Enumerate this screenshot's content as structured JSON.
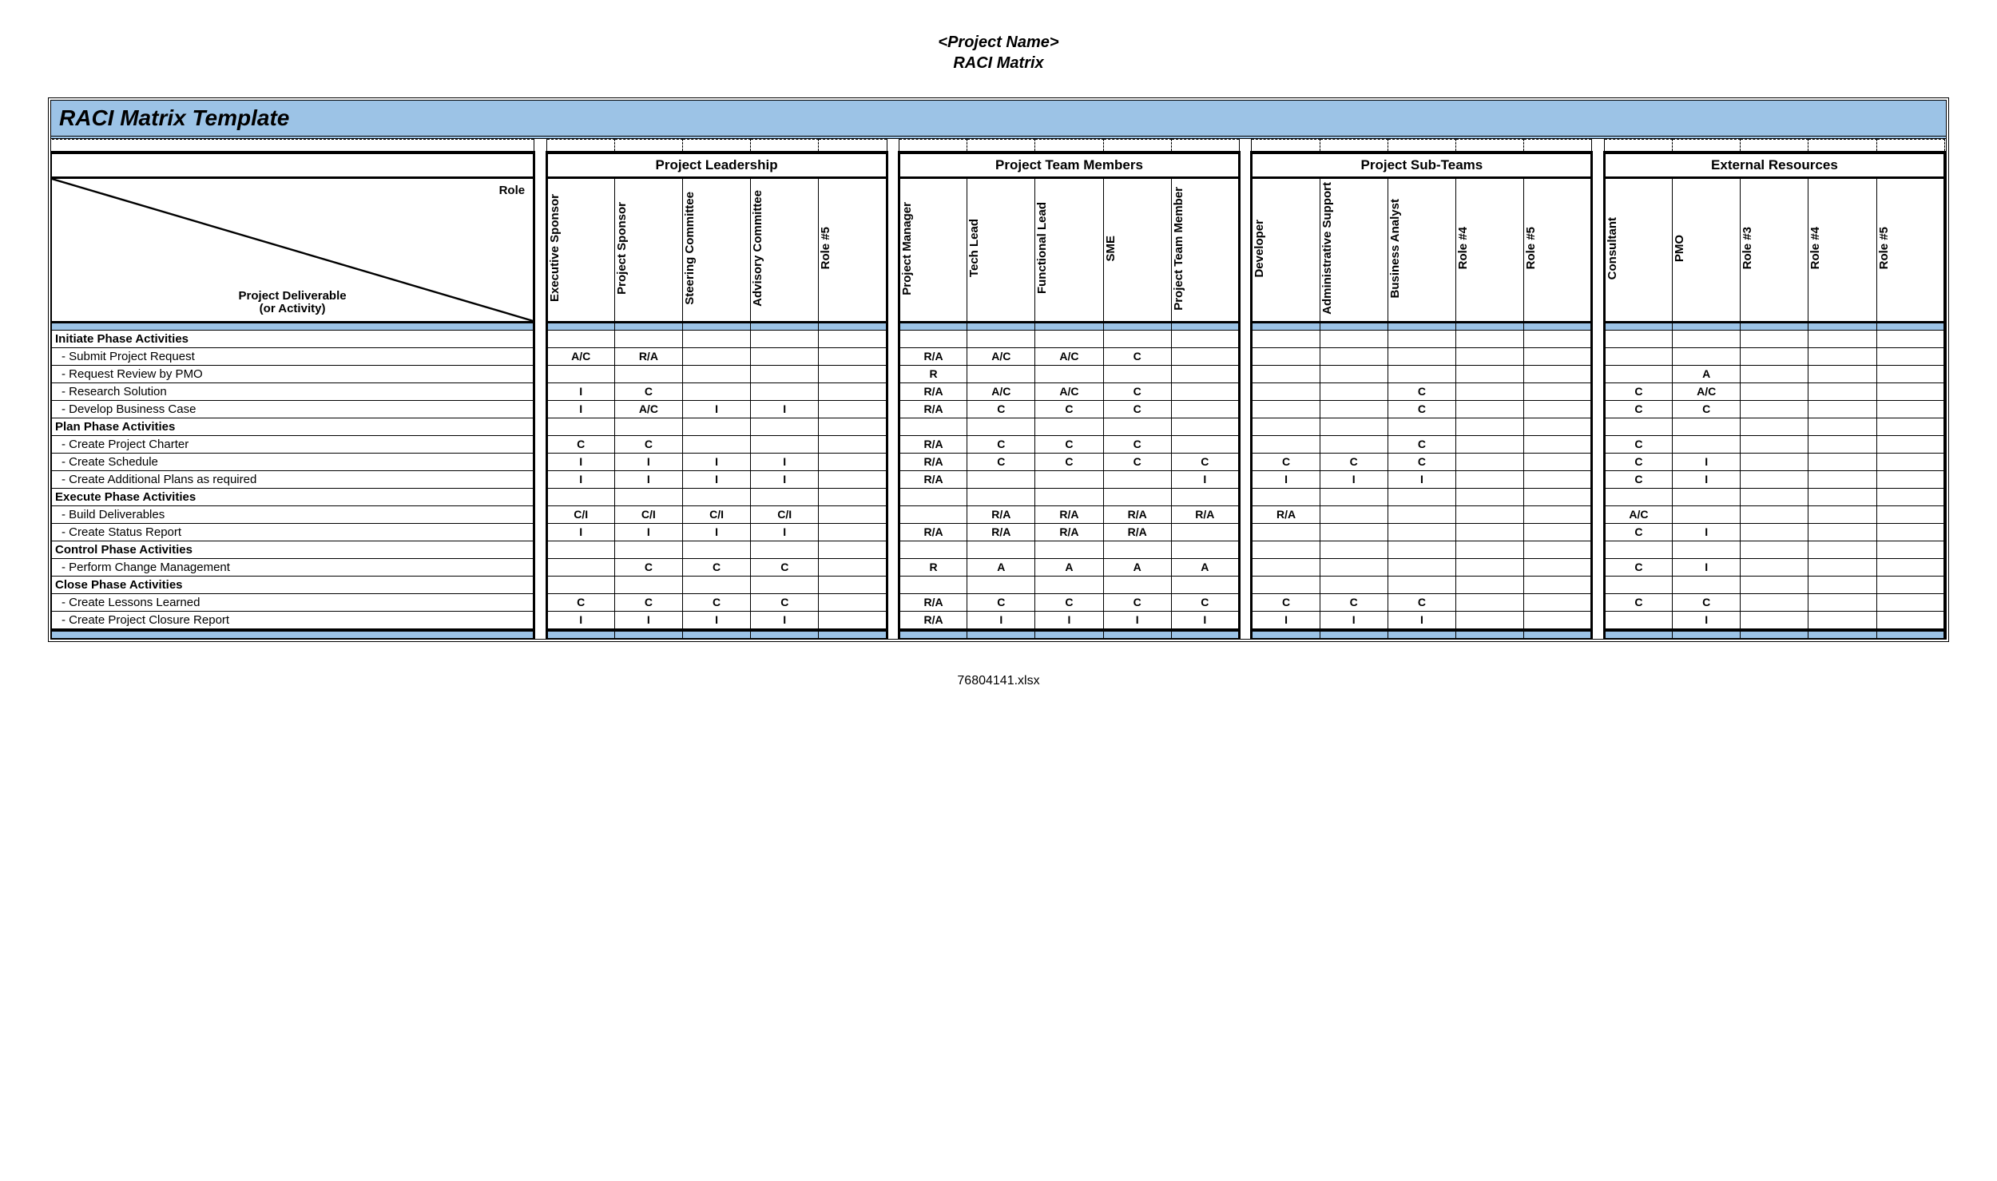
{
  "header_line1": "<Project Name>",
  "header_line2": "RACI Matrix",
  "title": "RACI Matrix Template",
  "diag_top": "Role",
  "diag_bottom_l1": "Project Deliverable",
  "diag_bottom_l2": "(or Activity)",
  "footer": "76804141.xlsx",
  "colors": {
    "band": "#9cc3e6",
    "border": "#000000",
    "bg": "#ffffff"
  },
  "groups": [
    {
      "label": "Project Leadership",
      "roles": [
        "Executive Sponsor",
        "Project Sponsor",
        "Steering Committee",
        "Advisory Committee",
        "Role #5"
      ]
    },
    {
      "label": "Project Team Members",
      "roles": [
        "Project Manager",
        "Tech Lead",
        "Functional Lead",
        "SME",
        "Project Team Member"
      ]
    },
    {
      "label": "Project Sub-Teams",
      "roles": [
        "Developer",
        "Administrative Support",
        "Business Analyst",
        "Role #4",
        "Role #5"
      ]
    },
    {
      "label": "External Resources",
      "roles": [
        "Consultant",
        "PMO",
        "Role #3",
        "Role #4",
        "Role #5"
      ]
    }
  ],
  "rows": [
    {
      "type": "phase",
      "label": "Initiate Phase Activities"
    },
    {
      "type": "act",
      "label": " - Submit Project Request",
      "cells": [
        "A/C",
        "R/A",
        "",
        "",
        "",
        "R/A",
        "A/C",
        "A/C",
        "C",
        "",
        "",
        "",
        "",
        "",
        "",
        "",
        "",
        "",
        "",
        ""
      ]
    },
    {
      "type": "act",
      "label": " - Request Review by PMO",
      "cells": [
        "",
        "",
        "",
        "",
        "",
        "R",
        "",
        "",
        "",
        "",
        "",
        "",
        "",
        "",
        "",
        "",
        "A",
        "",
        "",
        ""
      ]
    },
    {
      "type": "act",
      "label": " - Research Solution",
      "cells": [
        "I",
        "C",
        "",
        "",
        "",
        "R/A",
        "A/C",
        "A/C",
        "C",
        "",
        "",
        "",
        "C",
        "",
        "",
        "C",
        "A/C",
        "",
        "",
        ""
      ]
    },
    {
      "type": "act",
      "label": " - Develop Business Case",
      "cells": [
        "I",
        "A/C",
        "I",
        "I",
        "",
        "R/A",
        "C",
        "C",
        "C",
        "",
        "",
        "",
        "C",
        "",
        "",
        "C",
        "C",
        "",
        "",
        ""
      ]
    },
    {
      "type": "phase",
      "label": "Plan Phase Activities"
    },
    {
      "type": "act",
      "label": " - Create Project Charter",
      "cells": [
        "C",
        "C",
        "",
        "",
        "",
        "R/A",
        "C",
        "C",
        "C",
        "",
        "",
        "",
        "C",
        "",
        "",
        "C",
        "",
        "",
        "",
        ""
      ]
    },
    {
      "type": "act",
      "label": " - Create Schedule",
      "cells": [
        "I",
        "I",
        "I",
        "I",
        "",
        "R/A",
        "C",
        "C",
        "C",
        "C",
        "C",
        "C",
        "C",
        "",
        "",
        "C",
        "I",
        "",
        "",
        ""
      ]
    },
    {
      "type": "act",
      "label": " - Create Additional Plans as required",
      "cells": [
        "I",
        "I",
        "I",
        "I",
        "",
        "R/A",
        "",
        "",
        "",
        "I",
        "I",
        "I",
        "I",
        "",
        "",
        "C",
        "I",
        "",
        "",
        ""
      ]
    },
    {
      "type": "phase",
      "label": "Execute Phase Activities"
    },
    {
      "type": "act",
      "label": " - Build Deliverables",
      "cells": [
        "C/I",
        "C/I",
        "C/I",
        "C/I",
        "",
        "",
        "R/A",
        "R/A",
        "R/A",
        "R/A",
        "R/A",
        "",
        "",
        "",
        "",
        "A/C",
        "",
        "",
        "",
        ""
      ]
    },
    {
      "type": "act",
      "label": " - Create Status Report",
      "cells": [
        "I",
        "I",
        "I",
        "I",
        "",
        "R/A",
        "R/A",
        "R/A",
        "R/A",
        "",
        "",
        "",
        "",
        "",
        "",
        "C",
        "I",
        "",
        "",
        ""
      ]
    },
    {
      "type": "phase",
      "label": "Control Phase Activities"
    },
    {
      "type": "act",
      "label": " - Perform Change Management",
      "cells": [
        "",
        "C",
        "C",
        "C",
        "",
        "R",
        "A",
        "A",
        "A",
        "A",
        "",
        "",
        "",
        "",
        "",
        "C",
        "I",
        "",
        "",
        ""
      ]
    },
    {
      "type": "phase",
      "label": "Close Phase Activities"
    },
    {
      "type": "act",
      "label": " - Create Lessons Learned",
      "cells": [
        "C",
        "C",
        "C",
        "C",
        "",
        "R/A",
        "C",
        "C",
        "C",
        "C",
        "C",
        "C",
        "C",
        "",
        "",
        "C",
        "C",
        "",
        "",
        ""
      ]
    },
    {
      "type": "act",
      "label": " - Create Project Closure Report",
      "cells": [
        "I",
        "I",
        "I",
        "I",
        "",
        "R/A",
        "I",
        "I",
        "I",
        "I",
        "I",
        "I",
        "I",
        "",
        "",
        "",
        "I",
        "",
        "",
        ""
      ]
    }
  ]
}
